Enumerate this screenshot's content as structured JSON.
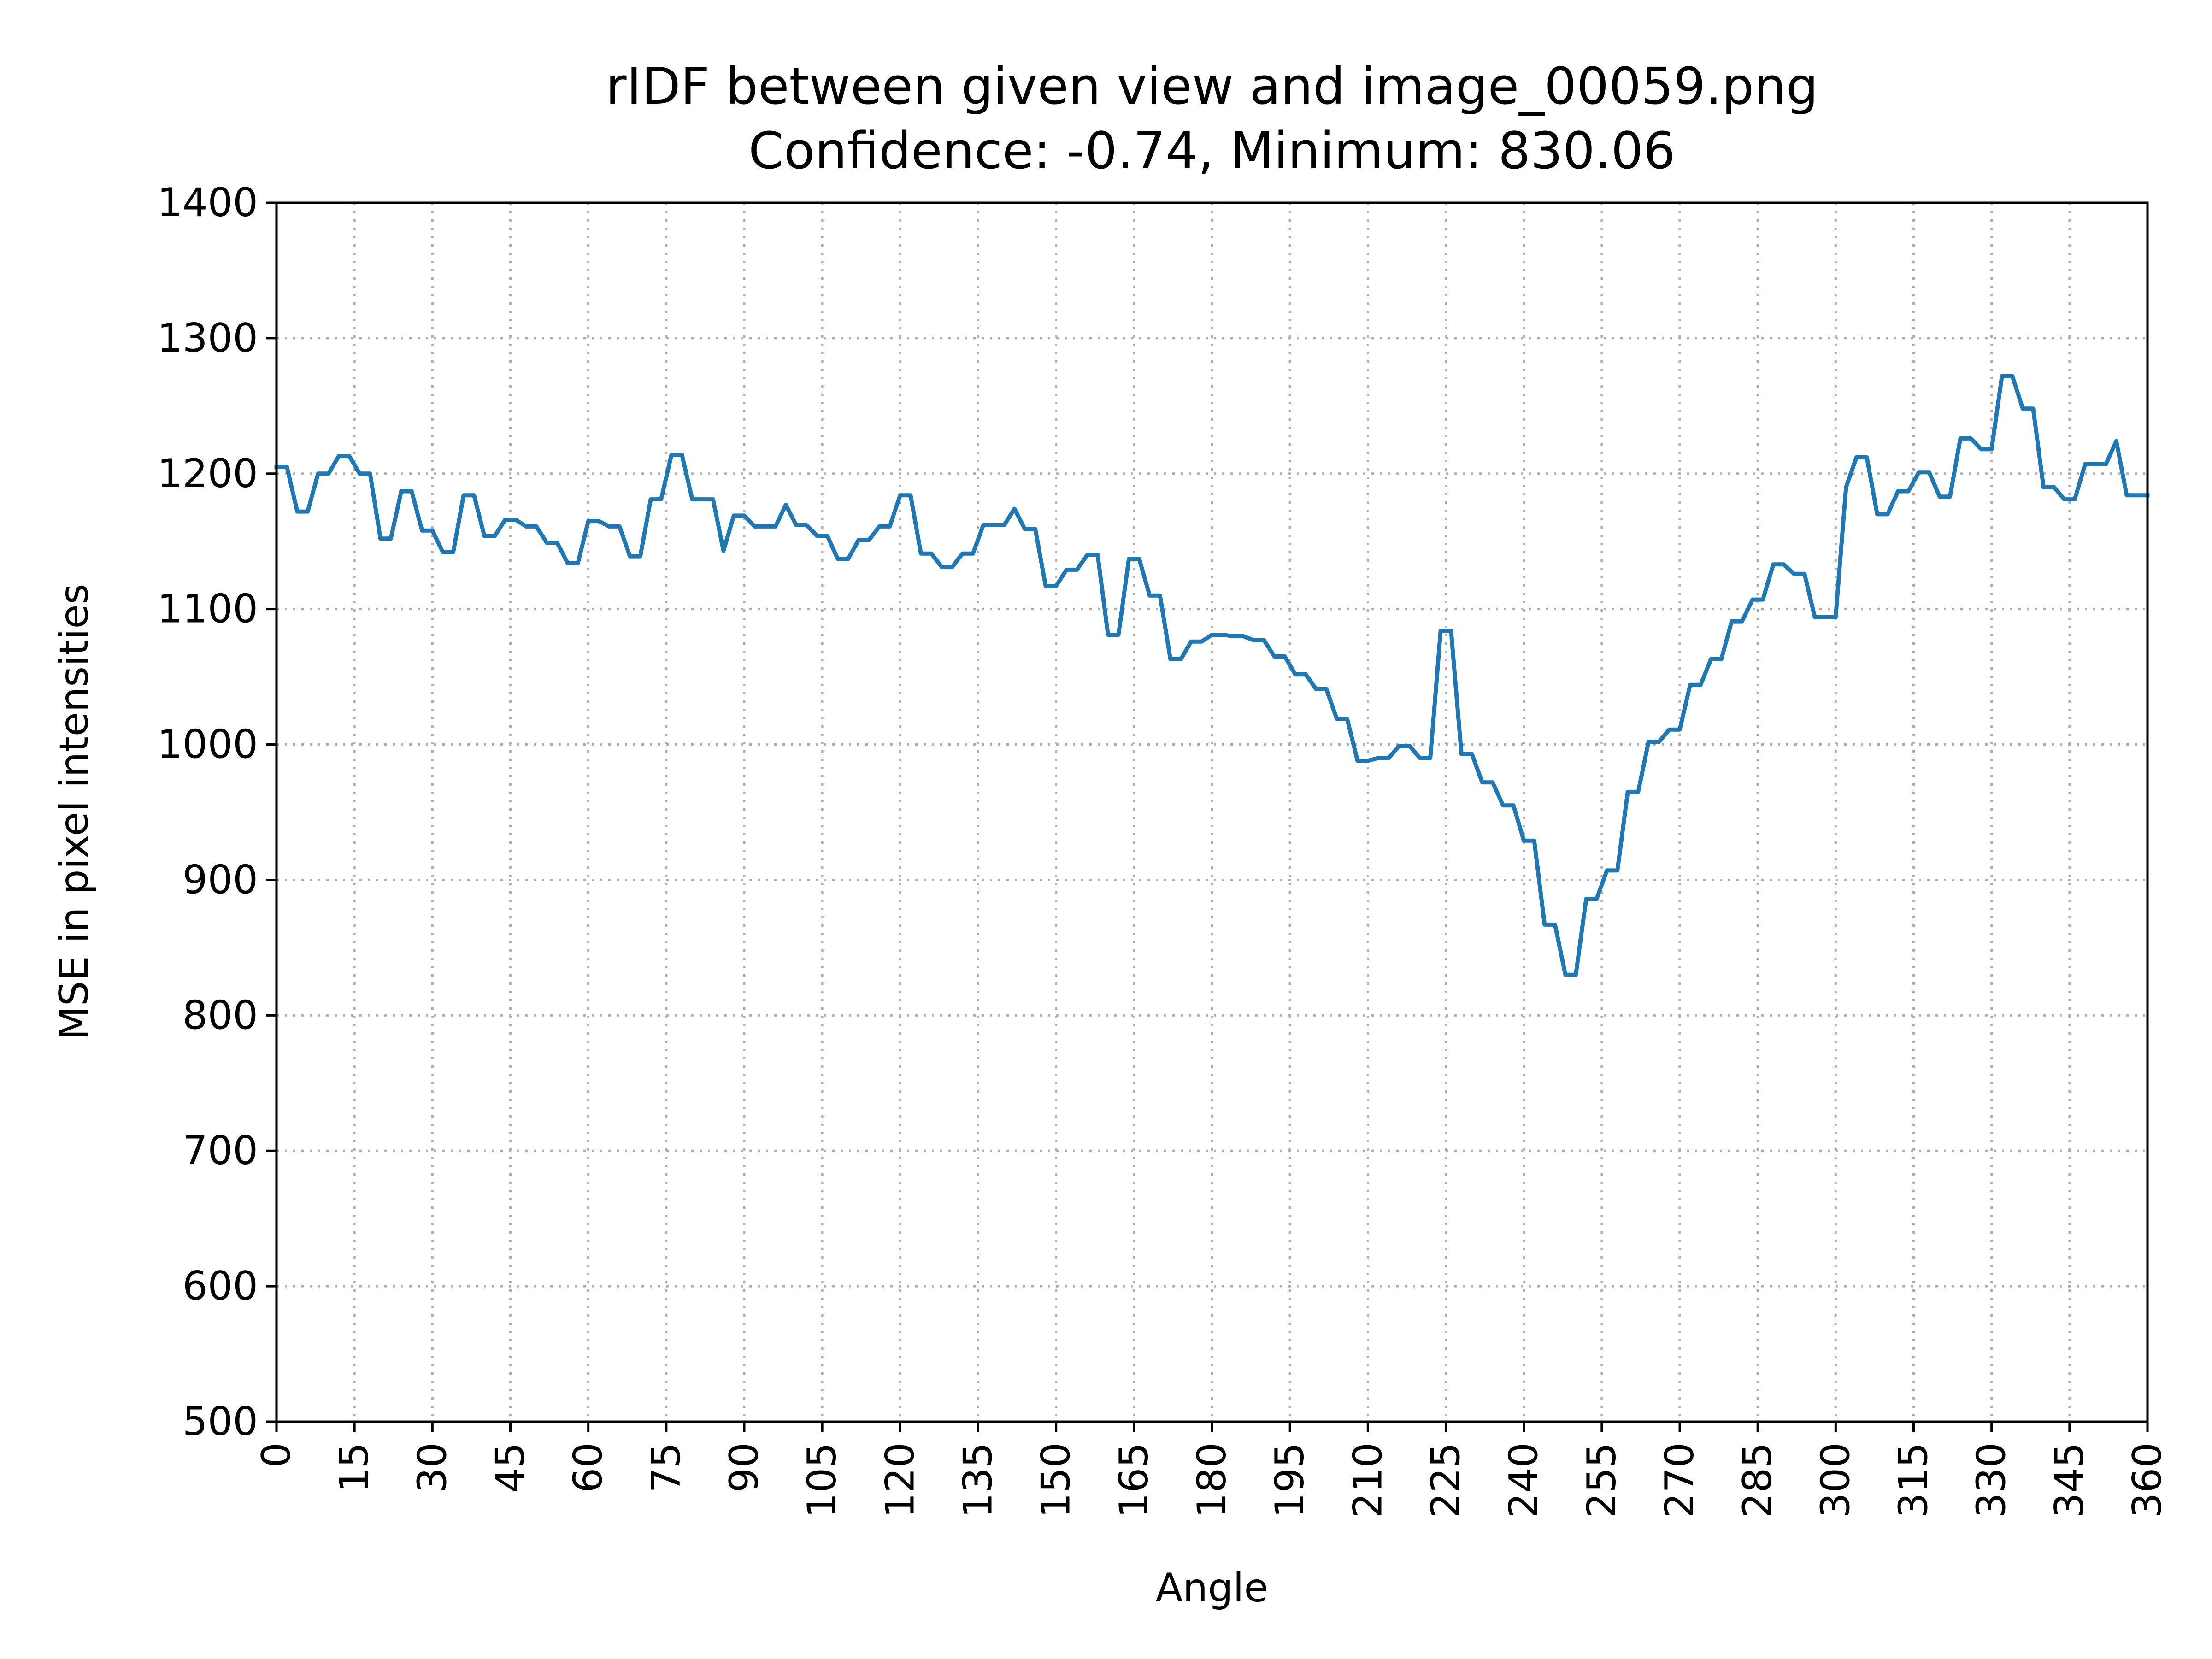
{
  "chart_data": {
    "type": "line",
    "title": "rIDF between given view and image_00059.png",
    "subtitle": "Confidence: -0.74, Minimum: 830.06",
    "xlabel": "Angle",
    "ylabel": "MSE in pixel intensities",
    "xlim": [
      0,
      360
    ],
    "ylim": [
      500,
      1400
    ],
    "xticks": [
      0,
      15,
      30,
      45,
      60,
      75,
      90,
      105,
      120,
      135,
      150,
      165,
      180,
      195,
      210,
      225,
      240,
      255,
      270,
      285,
      300,
      315,
      330,
      345,
      360
    ],
    "yticks": [
      500,
      600,
      700,
      800,
      900,
      1000,
      1100,
      1200,
      1300,
      1400
    ],
    "grid": true,
    "series_color": "#1f77b4",
    "points": [
      [
        0,
        1205
      ],
      [
        2,
        1205
      ],
      [
        4,
        1172
      ],
      [
        6,
        1172
      ],
      [
        8,
        1200
      ],
      [
        10,
        1200
      ],
      [
        12,
        1213
      ],
      [
        14,
        1213
      ],
      [
        16,
        1200
      ],
      [
        18,
        1200
      ],
      [
        20,
        1152
      ],
      [
        22,
        1152
      ],
      [
        24,
        1187
      ],
      [
        26,
        1187
      ],
      [
        28,
        1158
      ],
      [
        30,
        1158
      ],
      [
        32,
        1142
      ],
      [
        34,
        1142
      ],
      [
        36,
        1184
      ],
      [
        38,
        1184
      ],
      [
        40,
        1154
      ],
      [
        42,
        1154
      ],
      [
        44,
        1166
      ],
      [
        46,
        1166
      ],
      [
        48,
        1161
      ],
      [
        50,
        1161
      ],
      [
        52,
        1149
      ],
      [
        54,
        1149
      ],
      [
        56,
        1134
      ],
      [
        58,
        1134
      ],
      [
        60,
        1165
      ],
      [
        62,
        1165
      ],
      [
        64,
        1161
      ],
      [
        66,
        1161
      ],
      [
        68,
        1139
      ],
      [
        70,
        1139
      ],
      [
        72,
        1181
      ],
      [
        74,
        1181
      ],
      [
        76,
        1214
      ],
      [
        78,
        1214
      ],
      [
        80,
        1181
      ],
      [
        82,
        1181
      ],
      [
        84,
        1181
      ],
      [
        86,
        1143
      ],
      [
        88,
        1169
      ],
      [
        90,
        1169
      ],
      [
        92,
        1161
      ],
      [
        94,
        1161
      ],
      [
        96,
        1161
      ],
      [
        98,
        1177
      ],
      [
        100,
        1162
      ],
      [
        102,
        1162
      ],
      [
        104,
        1154
      ],
      [
        106,
        1154
      ],
      [
        108,
        1137
      ],
      [
        110,
        1137
      ],
      [
        112,
        1151
      ],
      [
        114,
        1151
      ],
      [
        116,
        1161
      ],
      [
        118,
        1161
      ],
      [
        120,
        1184
      ],
      [
        122,
        1184
      ],
      [
        124,
        1141
      ],
      [
        126,
        1141
      ],
      [
        128,
        1131
      ],
      [
        130,
        1131
      ],
      [
        132,
        1141
      ],
      [
        134,
        1141
      ],
      [
        136,
        1162
      ],
      [
        138,
        1162
      ],
      [
        140,
        1162
      ],
      [
        142,
        1174
      ],
      [
        144,
        1159
      ],
      [
        146,
        1159
      ],
      [
        148,
        1117
      ],
      [
        150,
        1117
      ],
      [
        152,
        1129
      ],
      [
        154,
        1129
      ],
      [
        156,
        1140
      ],
      [
        158,
        1140
      ],
      [
        160,
        1081
      ],
      [
        162,
        1081
      ],
      [
        164,
        1137
      ],
      [
        166,
        1137
      ],
      [
        168,
        1110
      ],
      [
        170,
        1110
      ],
      [
        172,
        1063
      ],
      [
        174,
        1063
      ],
      [
        176,
        1076
      ],
      [
        178,
        1076
      ],
      [
        180,
        1081
      ],
      [
        182,
        1081
      ],
      [
        184,
        1080
      ],
      [
        186,
        1080
      ],
      [
        188,
        1077
      ],
      [
        190,
        1077
      ],
      [
        192,
        1065
      ],
      [
        194,
        1065
      ],
      [
        196,
        1052
      ],
      [
        198,
        1052
      ],
      [
        200,
        1041
      ],
      [
        202,
        1041
      ],
      [
        204,
        1019
      ],
      [
        206,
        1019
      ],
      [
        208,
        988
      ],
      [
        210,
        988
      ],
      [
        212,
        990
      ],
      [
        214,
        990
      ],
      [
        216,
        999
      ],
      [
        218,
        999
      ],
      [
        220,
        990
      ],
      [
        222,
        990
      ],
      [
        224,
        1084
      ],
      [
        226,
        1084
      ],
      [
        228,
        993
      ],
      [
        230,
        993
      ],
      [
        232,
        972
      ],
      [
        234,
        972
      ],
      [
        236,
        955
      ],
      [
        238,
        955
      ],
      [
        240,
        929
      ],
      [
        242,
        929
      ],
      [
        244,
        867
      ],
      [
        246,
        867
      ],
      [
        248,
        830
      ],
      [
        250,
        830
      ],
      [
        252,
        886
      ],
      [
        254,
        886
      ],
      [
        256,
        907
      ],
      [
        258,
        907
      ],
      [
        260,
        965
      ],
      [
        262,
        965
      ],
      [
        264,
        1002
      ],
      [
        266,
        1002
      ],
      [
        268,
        1011
      ],
      [
        270,
        1011
      ],
      [
        272,
        1044
      ],
      [
        274,
        1044
      ],
      [
        276,
        1063
      ],
      [
        278,
        1063
      ],
      [
        280,
        1091
      ],
      [
        282,
        1091
      ],
      [
        284,
        1107
      ],
      [
        286,
        1107
      ],
      [
        288,
        1133
      ],
      [
        290,
        1133
      ],
      [
        292,
        1126
      ],
      [
        294,
        1126
      ],
      [
        296,
        1094
      ],
      [
        298,
        1094
      ],
      [
        300,
        1094
      ],
      [
        302,
        1190
      ],
      [
        304,
        1212
      ],
      [
        306,
        1212
      ],
      [
        308,
        1170
      ],
      [
        310,
        1170
      ],
      [
        312,
        1187
      ],
      [
        314,
        1187
      ],
      [
        316,
        1201
      ],
      [
        318,
        1201
      ],
      [
        320,
        1183
      ],
      [
        322,
        1183
      ],
      [
        324,
        1226
      ],
      [
        326,
        1226
      ],
      [
        328,
        1218
      ],
      [
        330,
        1218
      ],
      [
        332,
        1272
      ],
      [
        334,
        1272
      ],
      [
        336,
        1248
      ],
      [
        338,
        1248
      ],
      [
        340,
        1190
      ],
      [
        342,
        1190
      ],
      [
        344,
        1181
      ],
      [
        346,
        1181
      ],
      [
        348,
        1207
      ],
      [
        350,
        1207
      ],
      [
        352,
        1207
      ],
      [
        354,
        1224
      ],
      [
        356,
        1184
      ],
      [
        358,
        1184
      ],
      [
        360,
        1184
      ]
    ]
  }
}
